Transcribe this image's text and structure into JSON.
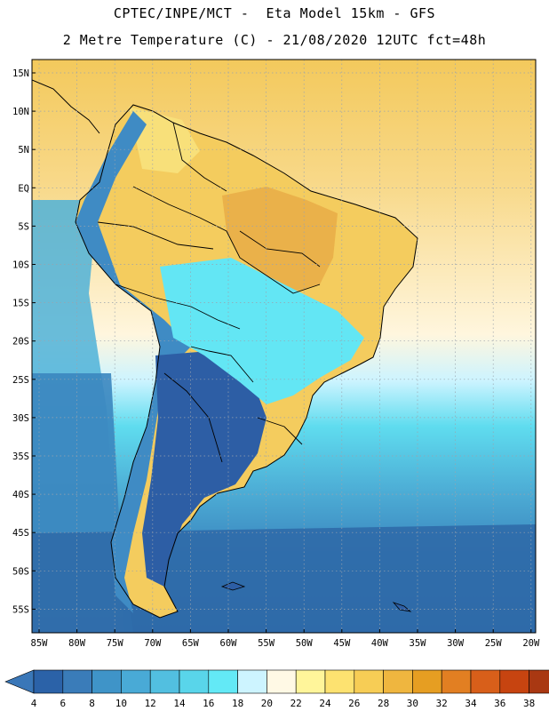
{
  "header": {
    "line1": "CPTEC/INPE/MCT -  Eta Model 15km - GFS",
    "line2": "2 Metre Temperature (C) - 21/08/2020 12UTC fct=48h"
  },
  "axes": {
    "lat_labels": [
      "15N",
      "10N",
      "5N",
      "EQ",
      "5S",
      "10S",
      "15S",
      "20S",
      "25S",
      "30S",
      "35S",
      "40S",
      "45S",
      "50S",
      "55S"
    ],
    "lon_labels": [
      "85W",
      "80W",
      "75W",
      "70W",
      "65W",
      "60W",
      "55W",
      "50W",
      "45W",
      "40W",
      "35W",
      "30W",
      "25W",
      "20W"
    ]
  },
  "colorbar": {
    "labels": [
      "4",
      "6",
      "8",
      "10",
      "12",
      "14",
      "16",
      "18",
      "20",
      "22",
      "24",
      "26",
      "28",
      "30",
      "32",
      "34",
      "36",
      "38"
    ],
    "colors": [
      "#2b62a8",
      "#3a7cb9",
      "#3f94c8",
      "#49aad6",
      "#52bfe0",
      "#59d5ea",
      "#63e9f6",
      "#cdf4ff",
      "#fff9e5",
      "#fff59a",
      "#fde270",
      "#f7cd55",
      "#efb63f",
      "#e69e22",
      "#e27f22",
      "#d85f1a",
      "#c74410",
      "#a93812"
    ],
    "low_color": "#3a77b8",
    "high_color": "#b84616"
  },
  "map_colors": {
    "ocean_deep": "#2f6aa9",
    "ocean_mid": "#3b86bf",
    "ocean_cool": "#4fb2d8",
    "ocean_aqua": "#5fdcef",
    "ocean_pale": "#cdf4ff",
    "ocean_cream": "#fff6de",
    "ocean_warm": "#f8d98a",
    "ocean_tropic": "#f3c95c",
    "land_hot": "#eab14a",
    "land_warm": "#f4cc5e",
    "land_mild": "#f8e07a",
    "land_cool": "#63e6f4",
    "land_cold": "#3f8bc4",
    "land_frozen": "#2d5ea5",
    "border": "#000000",
    "grid": "#9aa3ad"
  }
}
